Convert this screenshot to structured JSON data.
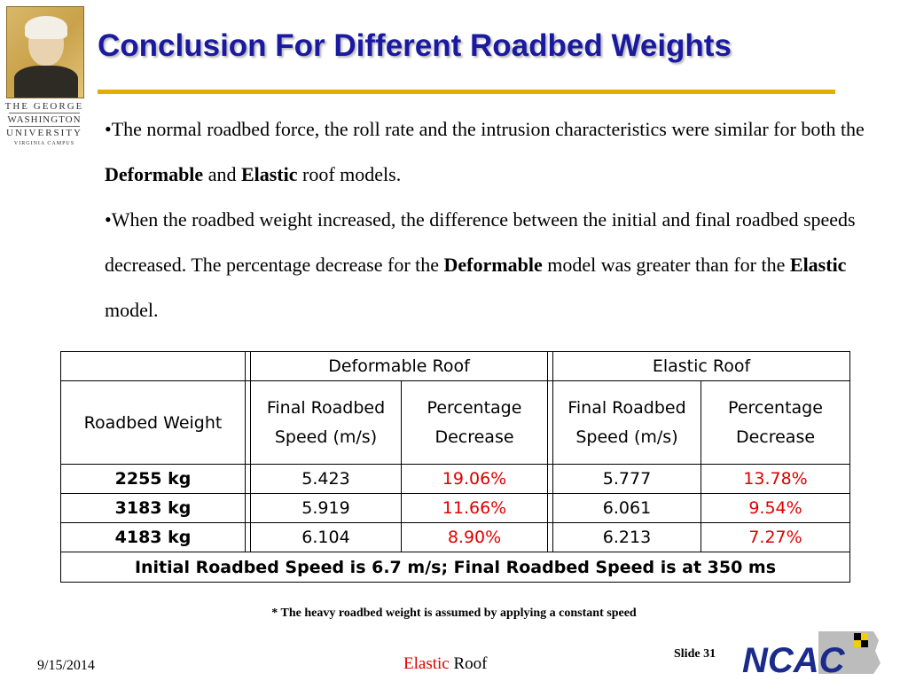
{
  "logo": {
    "line1": "THE GEORGE",
    "line2": "WASHINGTON",
    "line3": "UNIVERSITY",
    "line4": "VIRGINIA CAMPUS"
  },
  "title": "Conclusion For Different Roadbed Weights",
  "bullets": [
    {
      "segments": [
        {
          "text": "•The normal roadbed force, the roll rate and the intrusion characteristics were similar for both the ",
          "bold": false
        },
        {
          "text": "Deformable",
          "bold": true
        },
        {
          "text": " and ",
          "bold": false
        },
        {
          "text": "Elastic",
          "bold": true
        },
        {
          "text": " roof models.",
          "bold": false
        }
      ]
    },
    {
      "segments": [
        {
          "text": "•When the roadbed weight increased, the difference between the initial and final roadbed speeds decreased. The percentage decrease for the ",
          "bold": false
        },
        {
          "text": "Deformable",
          "bold": true
        },
        {
          "text": " model was greater than for the ",
          "bold": false
        },
        {
          "text": "Elastic",
          "bold": true
        },
        {
          "text": "  model.",
          "bold": false
        }
      ]
    }
  ],
  "table": {
    "group_headers": [
      "Deformable Roof",
      "Elastic Roof"
    ],
    "row_header": "Roadbed Weight",
    "col_headers": [
      [
        "Final Roadbed",
        "Speed (m/s)"
      ],
      [
        "Percentage",
        "Decrease"
      ],
      [
        "Final Roadbed",
        "Speed (m/s)"
      ],
      [
        "Percentage",
        "Decrease"
      ]
    ],
    "rows": [
      {
        "weight": "2255 kg",
        "def_speed": "5.423",
        "def_pct": "19.06%",
        "el_speed": "5.777",
        "el_pct": "13.78%"
      },
      {
        "weight": "3183 kg",
        "def_speed": "5.919",
        "def_pct": "11.66%",
        "el_speed": "6.061",
        "el_pct": "9.54%"
      },
      {
        "weight": "4183 kg",
        "def_speed": "6.104",
        "def_pct": "8.90%",
        "el_speed": "6.213",
        "el_pct": "7.27%"
      }
    ],
    "footer": "Initial Roadbed Speed is 6.7 m/s; Final Roadbed Speed is at 350 ms"
  },
  "note": "* The heavy roadbed weight is assumed by applying a constant speed",
  "footer": {
    "date": "9/15/2014",
    "center_word1": "Elastic",
    "center_word2": "Roof",
    "slide_label": "Slide 31",
    "logo_text": "NCAC"
  },
  "colors": {
    "title": "#1a1aa0",
    "rule": "#e0b000",
    "highlight": "#e00000",
    "logo_blue": "#1a2b8c"
  }
}
